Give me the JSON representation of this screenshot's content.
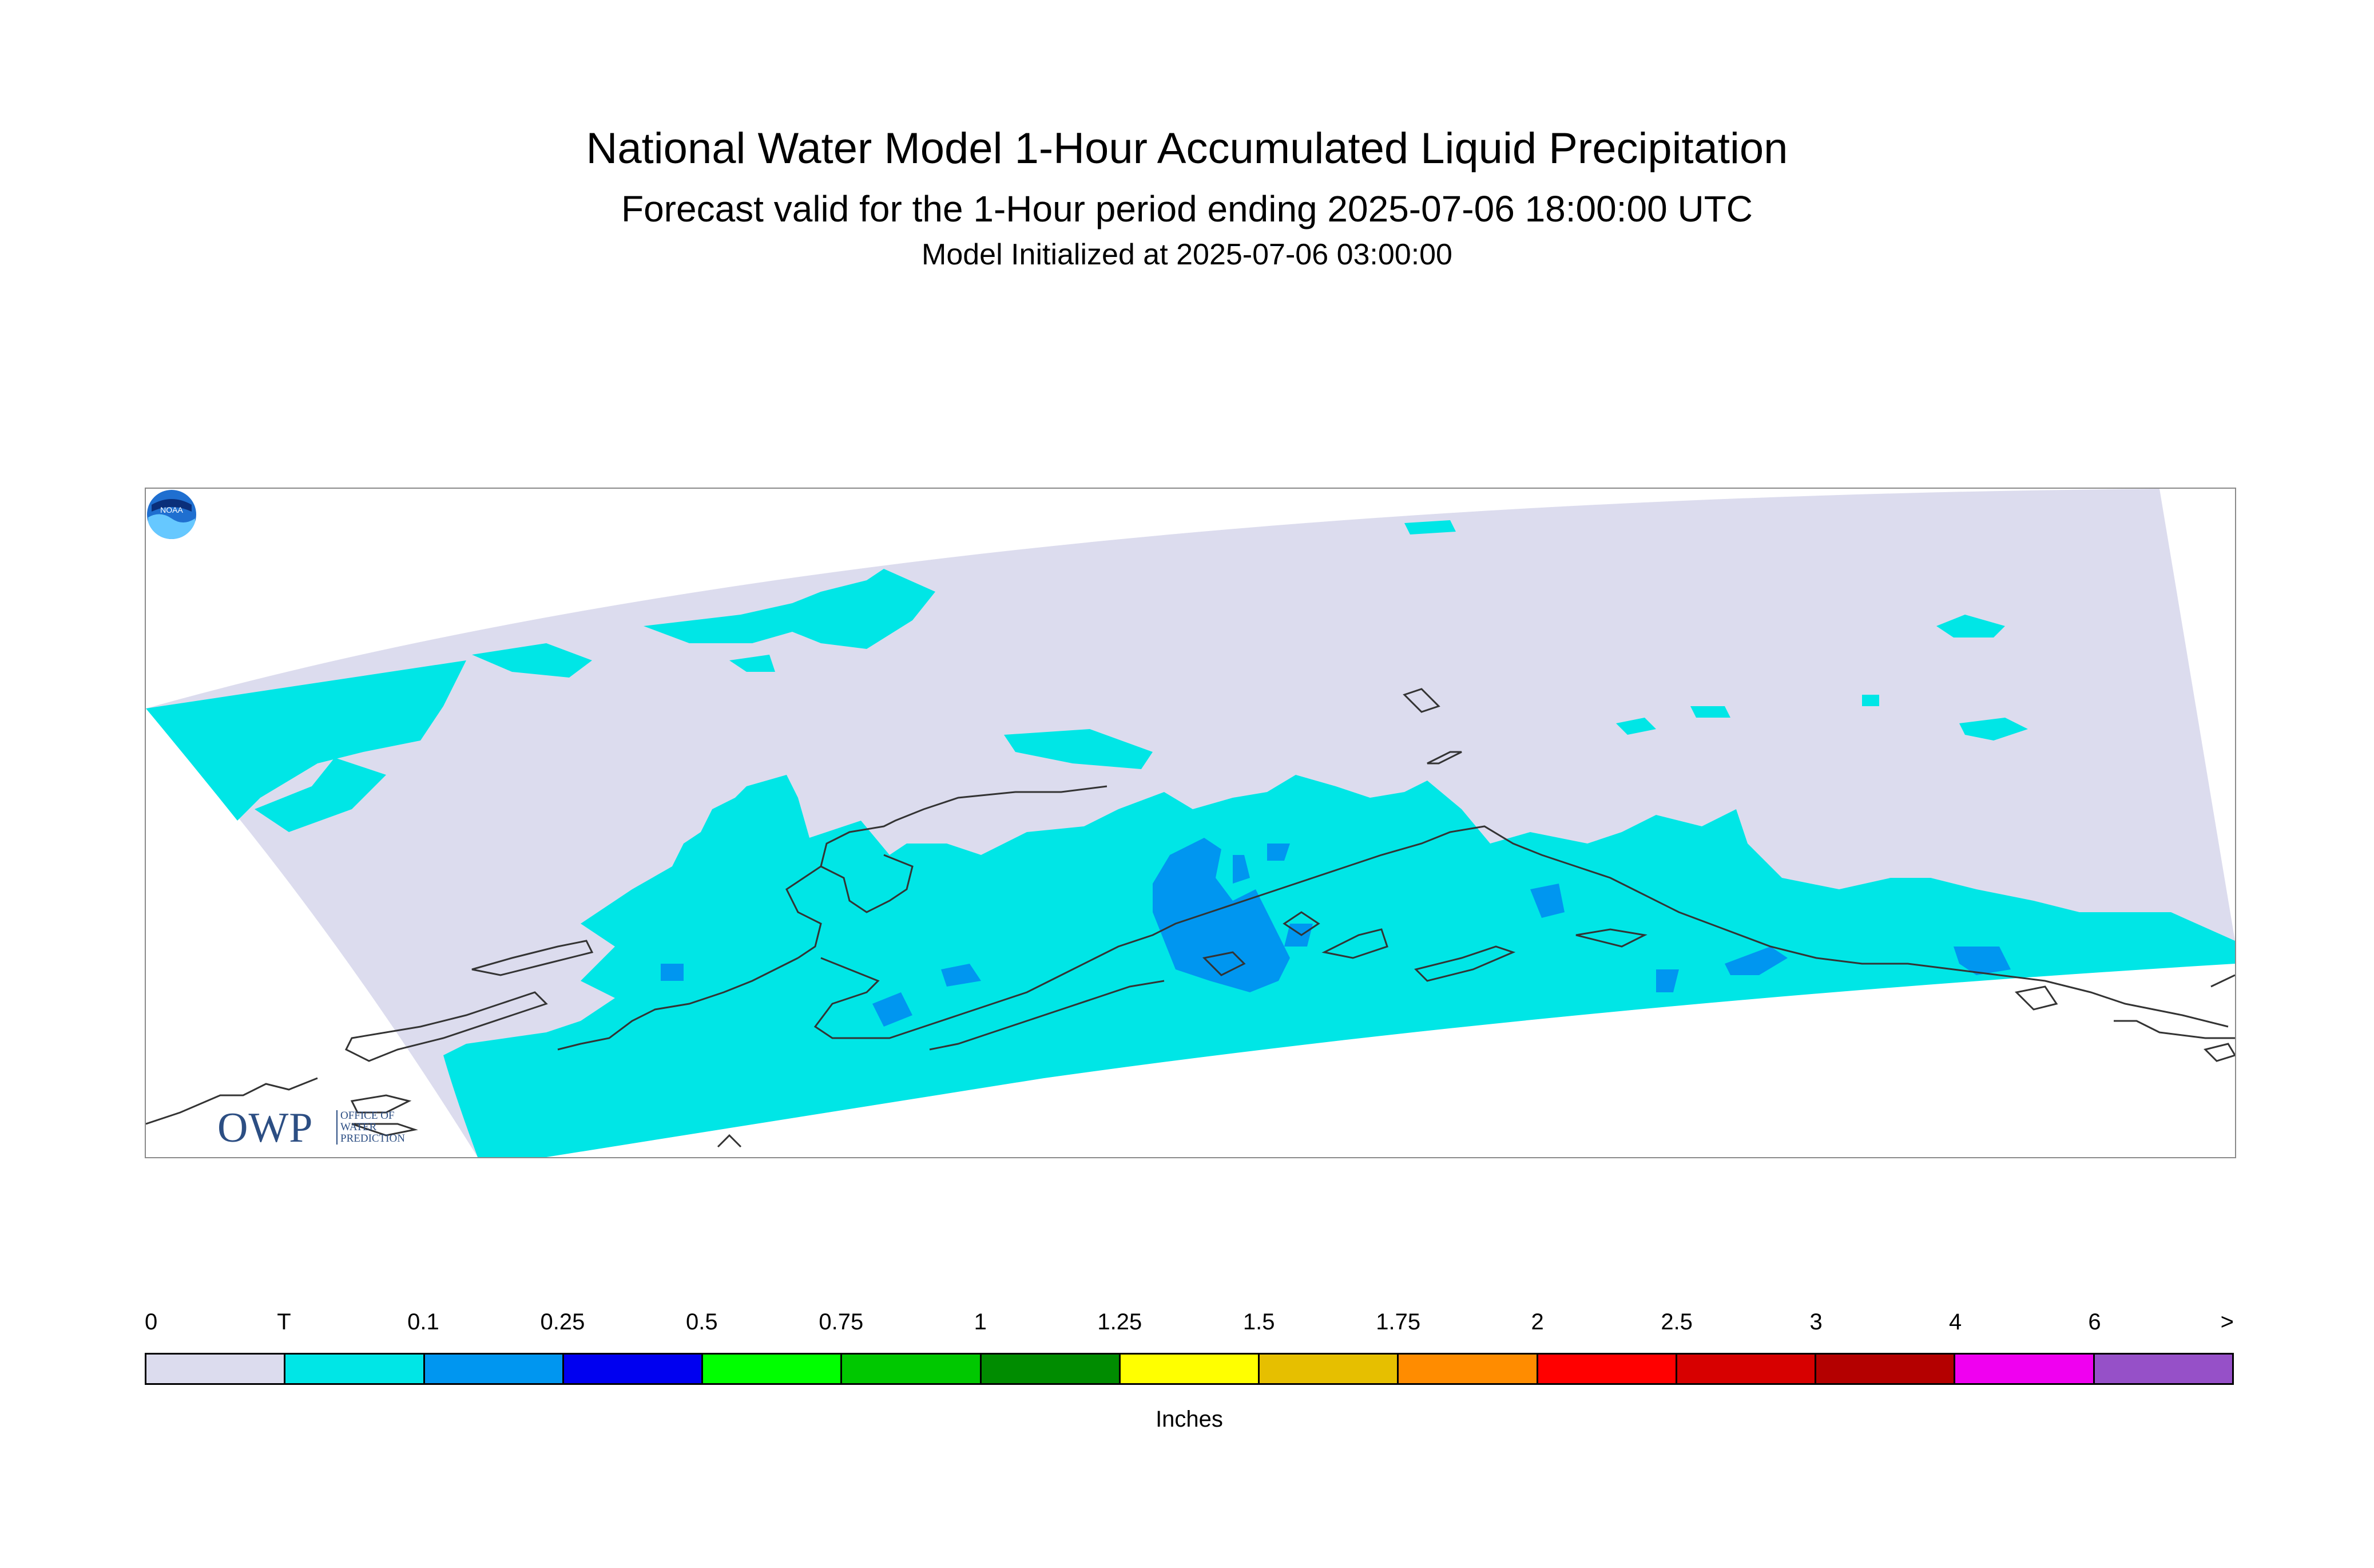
{
  "header": {
    "title": "National Water Model 1-Hour Accumulated Liquid Precipitation",
    "subtitle": "Forecast valid for the 1-Hour period ending 2025-07-06 18:00:00 UTC",
    "initialized": "Model Initialized at 2025-07-06 03:00:00"
  },
  "map": {
    "region_fill_color": "#dcdcee",
    "trace_color": "#00e6e6",
    "light_precip_color": "#0096f0",
    "coastline_color": "#333333"
  },
  "logos": {
    "owp_big": "OWP",
    "owp_small_1": "OFFICE OF",
    "owp_small_2": "WATER",
    "owp_small_3": "PREDICTION",
    "noaa_text": "NOAA"
  },
  "legend": {
    "unit_label": "Inches",
    "ticks": [
      "0",
      "T",
      "0.1",
      "0.25",
      "0.5",
      "0.75",
      "1",
      "1.25",
      "1.5",
      "1.75",
      "2",
      "2.5",
      "3",
      "4",
      "6",
      ">"
    ],
    "colors": [
      "#dcdcee",
      "#00e6e6",
      "#0096f0",
      "#0000f0",
      "#00ff00",
      "#00c800",
      "#008c00",
      "#ffff00",
      "#e6bf00",
      "#ff8c00",
      "#ff0000",
      "#d70000",
      "#b40000",
      "#f000f0",
      "#9650c8"
    ]
  }
}
